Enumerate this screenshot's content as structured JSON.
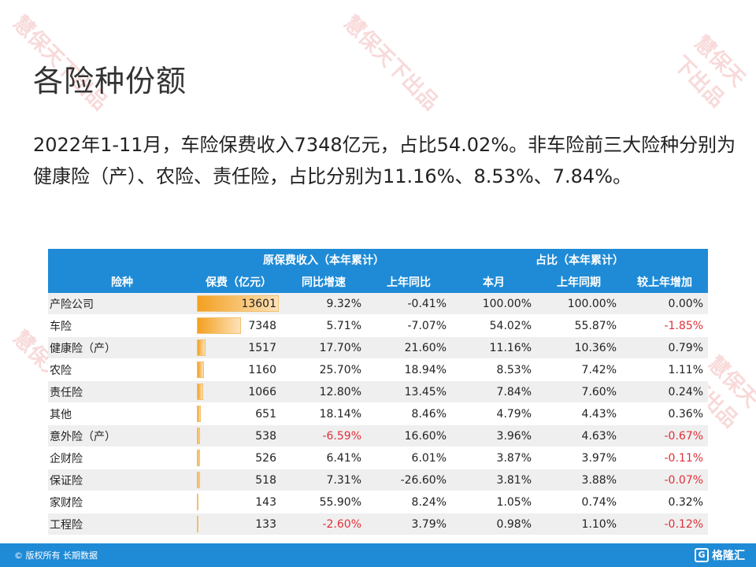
{
  "title": "各险种份额",
  "paragraph": "2022年1-11月，车险保费收入7348亿元，占比54.02%。非车险前三大险种分别为健康险（产）、农险、责任险，占比分别为11.16%、8.53%、7.84%。",
  "watermark_text": "慧保天下出品",
  "table": {
    "group_headers": {
      "premium": "原保费收入（本年累计）",
      "share": "占比（本年累计）"
    },
    "headers": [
      "险种",
      "保费（亿元）",
      "同比增速",
      "上年同比",
      "本月",
      "上年同期",
      "较上年增加"
    ],
    "rows": [
      {
        "name": "产险公司",
        "premium": "13601",
        "bar": 1.0,
        "yoy": "9.32%",
        "last_yoy": "-0.41%",
        "share": "100.00%",
        "last_share": "100.00%",
        "change": "0.00%"
      },
      {
        "name": "车险",
        "premium": "7348",
        "bar": 0.54,
        "yoy": "5.71%",
        "last_yoy": "-7.07%",
        "share": "54.02%",
        "last_share": "55.87%",
        "change": "-1.85%"
      },
      {
        "name": "健康险（产）",
        "premium": "1517",
        "bar": 0.11,
        "yoy": "17.70%",
        "last_yoy": "21.60%",
        "share": "11.16%",
        "last_share": "10.36%",
        "change": "0.79%"
      },
      {
        "name": "农险",
        "premium": "1160",
        "bar": 0.085,
        "yoy": "25.70%",
        "last_yoy": "18.94%",
        "share": "8.53%",
        "last_share": "7.42%",
        "change": "1.11%"
      },
      {
        "name": "责任险",
        "premium": "1066",
        "bar": 0.078,
        "yoy": "12.80%",
        "last_yoy": "13.45%",
        "share": "7.84%",
        "last_share": "7.60%",
        "change": "0.24%"
      },
      {
        "name": "其他",
        "premium": "651",
        "bar": 0.048,
        "yoy": "18.14%",
        "last_yoy": "8.46%",
        "share": "4.79%",
        "last_share": "4.43%",
        "change": "0.36%"
      },
      {
        "name": "意外险（产）",
        "premium": "538",
        "bar": 0.04,
        "yoy": "-6.59%",
        "last_yoy": "16.60%",
        "share": "3.96%",
        "last_share": "4.63%",
        "change": "-0.67%"
      },
      {
        "name": "企财险",
        "premium": "526",
        "bar": 0.039,
        "yoy": "6.41%",
        "last_yoy": "6.01%",
        "share": "3.87%",
        "last_share": "3.97%",
        "change": "-0.11%"
      },
      {
        "name": "保证险",
        "premium": "518",
        "bar": 0.038,
        "yoy": "7.31%",
        "last_yoy": "-26.60%",
        "share": "3.81%",
        "last_share": "3.88%",
        "change": "-0.07%"
      },
      {
        "name": "家财险",
        "premium": "143",
        "bar": 0.011,
        "yoy": "55.90%",
        "last_yoy": "8.24%",
        "share": "1.05%",
        "last_share": "0.74%",
        "change": "0.32%"
      },
      {
        "name": "工程险",
        "premium": "133",
        "bar": 0.01,
        "yoy": "-2.60%",
        "last_yoy": "3.79%",
        "share": "0.98%",
        "last_share": "1.10%",
        "change": "-0.12%"
      }
    ]
  },
  "footer": {
    "copyright": "© 版权所有 长期数据",
    "brand": "格隆汇",
    "brand_icon": "G-logo-icon"
  },
  "colors": {
    "header_bg": "#1f8bd6",
    "negative": "#e0303a",
    "bar": "#f3a020"
  }
}
